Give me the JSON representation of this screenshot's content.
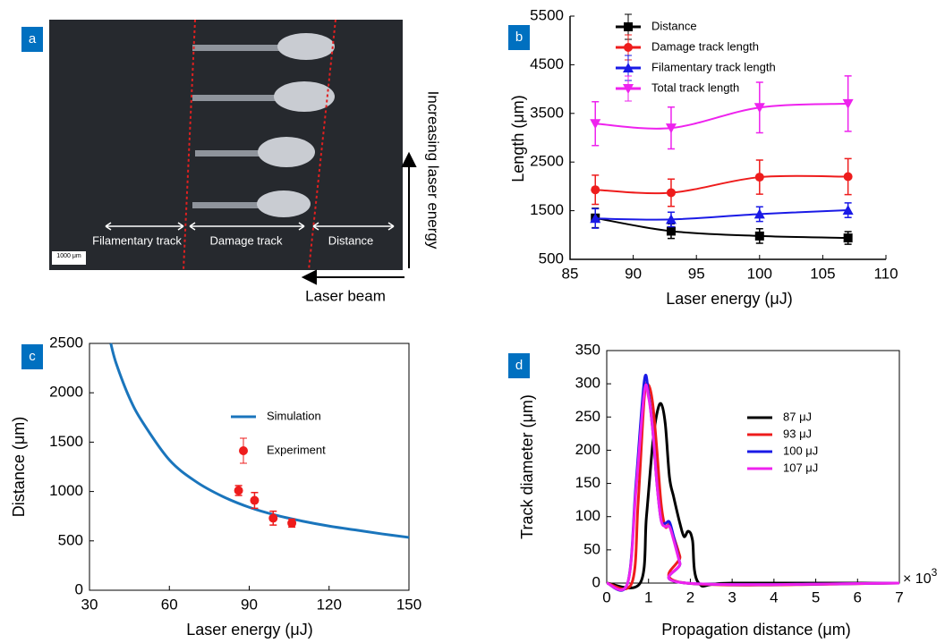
{
  "chart_data": [
    {
      "type": "image",
      "label": "a",
      "annotations": {
        "filamentary": "Filamentary track",
        "damage": "Damage track",
        "distance": "Distance",
        "scale_bar": "1000 μm",
        "energy_arrow": "Increasing laser energy",
        "beam_arrow": "Laser beam"
      }
    },
    {
      "type": "line",
      "label": "b",
      "x_label": "Laser energy (μJ)",
      "y_label": "Length (μm)",
      "xlim": [
        85,
        110
      ],
      "xticks": [
        85,
        90,
        95,
        100,
        105,
        110
      ],
      "ylim": [
        500,
        5500
      ],
      "yticks": [
        500,
        1500,
        2500,
        3500,
        4500,
        5500
      ],
      "legend": "upper left",
      "series": [
        {
          "name": "Distance",
          "color": "#000000",
          "marker": "square",
          "x": [
            87,
            93,
            100,
            107
          ],
          "values": [
            1350,
            1080,
            980,
            940
          ],
          "errors": [
            200,
            150,
            150,
            130
          ]
        },
        {
          "name": "Damage track length",
          "color": "#ee1c1c",
          "marker": "circle",
          "x": [
            87,
            93,
            100,
            107
          ],
          "values": [
            1930,
            1870,
            2190,
            2200
          ],
          "errors": [
            300,
            280,
            350,
            370
          ]
        },
        {
          "name": "Filamentary track length",
          "color": "#1a1ae6",
          "marker": "triangle-up",
          "x": [
            87,
            93,
            100,
            107
          ],
          "values": [
            1340,
            1320,
            1430,
            1510
          ],
          "errors": [
            200,
            150,
            150,
            150
          ]
        },
        {
          "name": "Total track length",
          "color": "#ee22ee",
          "marker": "triangle-down",
          "x": [
            87,
            93,
            100,
            107
          ],
          "values": [
            3290,
            3200,
            3620,
            3700
          ],
          "errors": [
            450,
            430,
            520,
            570
          ]
        }
      ]
    },
    {
      "type": "line",
      "label": "c",
      "x_label": "Laser energy (μJ)",
      "y_label": "Distance (μm)",
      "xlim": [
        30,
        150
      ],
      "xticks": [
        30,
        60,
        90,
        120,
        150
      ],
      "ylim": [
        0,
        2500
      ],
      "yticks": [
        0,
        500,
        1000,
        1500,
        2000,
        2500
      ],
      "legend": "center",
      "series": [
        {
          "name": "Simulation",
          "color": "#1a75bc",
          "x": [
            38,
            40,
            45,
            50,
            60,
            70,
            80,
            90,
            100,
            110,
            120,
            130,
            140,
            150
          ],
          "values": [
            2500,
            2300,
            1950,
            1700,
            1320,
            1100,
            950,
            840,
            760,
            700,
            650,
            610,
            570,
            535
          ]
        },
        {
          "name": "Experiment",
          "color": "#ee1c1c",
          "marker": "circle",
          "line": false,
          "x": [
            86,
            92,
            99,
            106
          ],
          "values": [
            1010,
            910,
            730,
            680
          ],
          "errors": [
            50,
            80,
            70,
            40
          ]
        }
      ]
    },
    {
      "type": "line",
      "label": "d",
      "x_label": "Propagation distance (μm)",
      "y_label": "Track diameter (μm)",
      "x_multiplier": {
        "base": "× 10",
        "exponent": "3"
      },
      "xlim": [
        0,
        7
      ],
      "xticks": [
        0,
        1,
        2,
        3,
        4,
        5,
        6,
        7
      ],
      "ylim": [
        0,
        350
      ],
      "yticks": [
        0,
        50,
        100,
        150,
        200,
        250,
        300,
        350
      ],
      "legend": "center",
      "series": [
        {
          "name": "87 μJ",
          "color": "#000000",
          "x": [
            0,
            0.8,
            0.95,
            1.1,
            1.2,
            1.3,
            1.4,
            1.5,
            1.6,
            1.75,
            1.85,
            1.95,
            2.05,
            2.2,
            3,
            7
          ],
          "values": [
            0,
            0,
            100,
            210,
            255,
            270,
            240,
            160,
            130,
            90,
            70,
            78,
            65,
            0,
            0,
            0
          ]
        },
        {
          "name": "93 μJ",
          "color": "#ee1c1c",
          "x": [
            0,
            0.6,
            0.75,
            0.9,
            1.0,
            1.1,
            1.2,
            1.3,
            1.4,
            1.5,
            1.6,
            1.75,
            1.9,
            7
          ],
          "values": [
            0,
            0,
            120,
            280,
            298,
            270,
            200,
            120,
            85,
            88,
            70,
            40,
            0,
            0
          ]
        },
        {
          "name": "100 μJ",
          "color": "#1a1ae6",
          "x": [
            0,
            0.5,
            0.7,
            0.9,
            1.0,
            1.1,
            1.2,
            1.3,
            1.4,
            1.5,
            1.6,
            1.75,
            1.9,
            7
          ],
          "values": [
            0,
            0,
            150,
            305,
            285,
            230,
            150,
            95,
            90,
            92,
            70,
            30,
            0,
            0
          ]
        },
        {
          "name": "107 μJ",
          "color": "#ee22ee",
          "x": [
            0,
            0.5,
            0.7,
            0.9,
            1.0,
            1.1,
            1.2,
            1.3,
            1.4,
            1.5,
            1.6,
            1.75,
            1.9,
            7
          ],
          "values": [
            0,
            0,
            140,
            288,
            280,
            230,
            150,
            95,
            85,
            85,
            65,
            30,
            0,
            0
          ]
        }
      ]
    }
  ]
}
